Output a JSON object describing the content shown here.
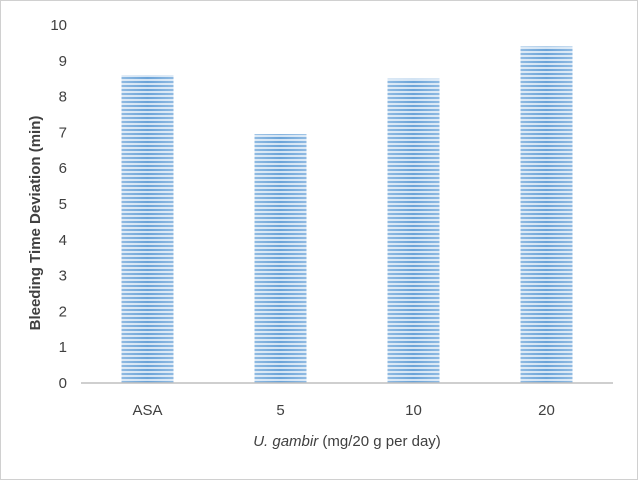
{
  "chart_data": {
    "type": "bar",
    "categories": [
      "ASA",
      "5",
      "10",
      "20"
    ],
    "values": [
      8.6,
      6.95,
      8.5,
      9.4
    ],
    "ylabel": "Bleeding Time Deviation (min)",
    "xlabel_italic": "U. gambir",
    "xlabel_rest": " (mg/20 g per day)",
    "ylim": [
      0,
      10
    ],
    "yticks": [
      0,
      1,
      2,
      3,
      4,
      5,
      6,
      7,
      8,
      9,
      10
    ],
    "grid": false,
    "legend": "none",
    "bar_color": "#5b9bd5",
    "bar_fill_style": "horizontal-stripes"
  }
}
